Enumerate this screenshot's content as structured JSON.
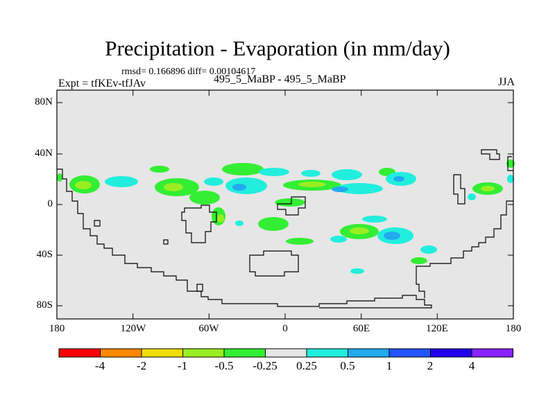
{
  "header": {
    "title": "Precipitation - Evaporation (in mm/day)",
    "stats": "rmsd= 0.166896 diff= 0.00104617",
    "left_label": "Expt = tfKEv-tfJAv",
    "center_label": "495_5_MaBP - 495_5_MaBP",
    "right_label": "JJA"
  },
  "map": {
    "y_ticks": [
      "80N",
      "40N",
      "0",
      "40S",
      "80S"
    ],
    "x_ticks": [
      "180",
      "120W",
      "60W",
      "0",
      "60E",
      "120E",
      "180"
    ],
    "colors": {
      "background": "#e6e6e6",
      "land_outline": "#000000",
      "neg_0_25_0_5": "#33ee33",
      "neg_0_5_1": "#99ee22",
      "pos_0_25_0_5": "#22eedd",
      "pos_0_5_1": "#22aaee"
    }
  },
  "colorbar": {
    "labels": [
      "-4",
      "-2",
      "-1",
      "-0.5",
      "-0.25",
      "0.25",
      "0.5",
      "1",
      "2",
      "4"
    ],
    "colors": [
      "#ff0000",
      "#ff8800",
      "#eedd00",
      "#99ee22",
      "#33ee33",
      "#e6e6e6",
      "#22eedd",
      "#22aaee",
      "#2255ff",
      "#2200ee",
      "#8822ff"
    ]
  }
}
